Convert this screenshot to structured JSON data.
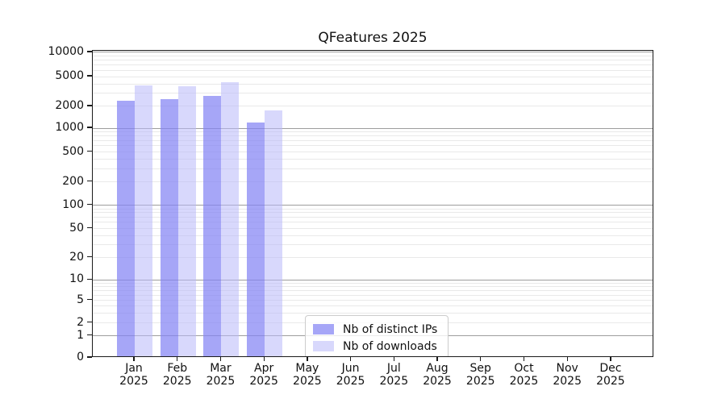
{
  "title": "QFeatures 2025",
  "chart_data": {
    "type": "bar",
    "title": "QFeatures 2025",
    "scale": "symlog",
    "x_months": [
      "Jan",
      "Feb",
      "Mar",
      "Apr",
      "May",
      "Jun",
      "Jul",
      "Aug",
      "Sep",
      "Oct",
      "Nov",
      "Dec"
    ],
    "x_year": "2025",
    "categories": [
      "Jan 2025",
      "Feb 2025",
      "Mar 2025",
      "Apr 2025",
      "May 2025",
      "Jun 2025",
      "Jul 2025",
      "Aug 2025",
      "Sep 2025",
      "Oct 2025",
      "Nov 2025",
      "Dec 2025"
    ],
    "series": [
      {
        "name": "Nb of distinct IPs",
        "color": "#a8a8f8",
        "fill": "rgba(131,131,244,0.72)",
        "values": [
          2250,
          2400,
          2600,
          1150,
          null,
          null,
          null,
          null,
          null,
          null,
          null,
          null
        ]
      },
      {
        "name": "Nb of downloads",
        "color": "#d8d8f8",
        "fill": "rgba(184,184,250,0.55)",
        "values": [
          3600,
          3550,
          4050,
          1650,
          null,
          null,
          null,
          null,
          null,
          null,
          null,
          null
        ]
      }
    ],
    "yticks": [
      0,
      1,
      2,
      5,
      10,
      20,
      50,
      100,
      200,
      500,
      1000,
      2000,
      5000,
      10000
    ],
    "ylim": [
      0,
      10700
    ],
    "xlabel": "",
    "ylabel": "",
    "grid": "both",
    "legend_position": "inside-bottom-center"
  }
}
